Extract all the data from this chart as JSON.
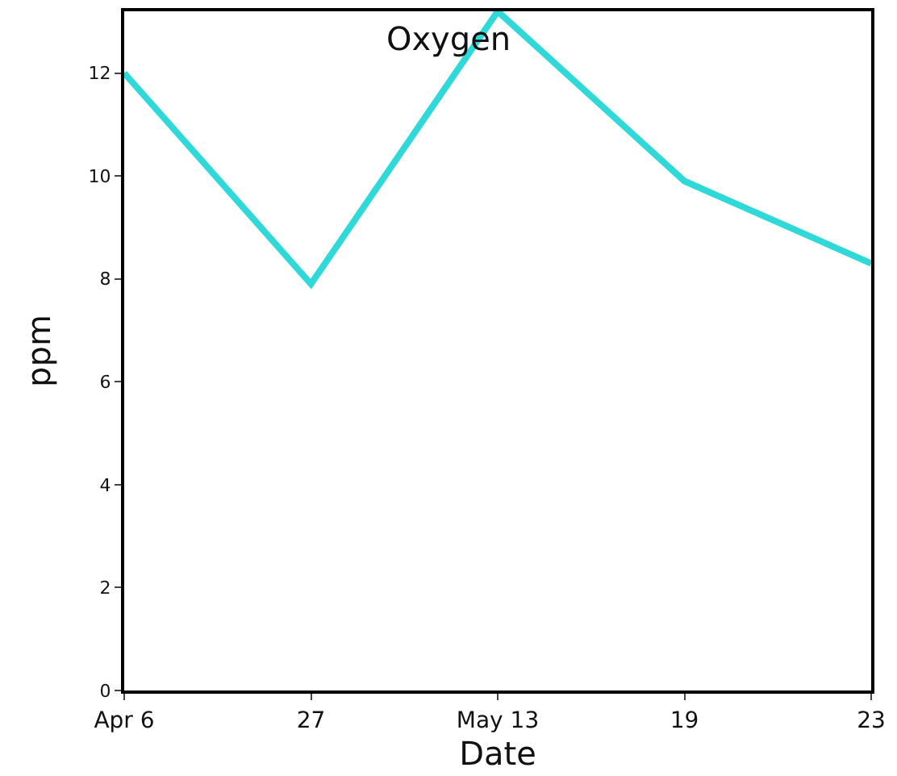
{
  "chart_data": {
    "type": "line",
    "title": "Oxygen",
    "xlabel": "Date",
    "ylabel": "ppm",
    "categories": [
      "Apr 6",
      "27",
      "May 13",
      "19",
      "23"
    ],
    "series": [
      {
        "color": "#2fd9d9",
        "values": [
          12,
          7.9,
          13.2,
          9.9,
          8.3
        ]
      }
    ],
    "ylim": [
      0,
      13.2
    ],
    "yticks": [
      0,
      2,
      4,
      6,
      8,
      10,
      12
    ],
    "grid": false,
    "marker": "none",
    "line_style": "solid"
  }
}
